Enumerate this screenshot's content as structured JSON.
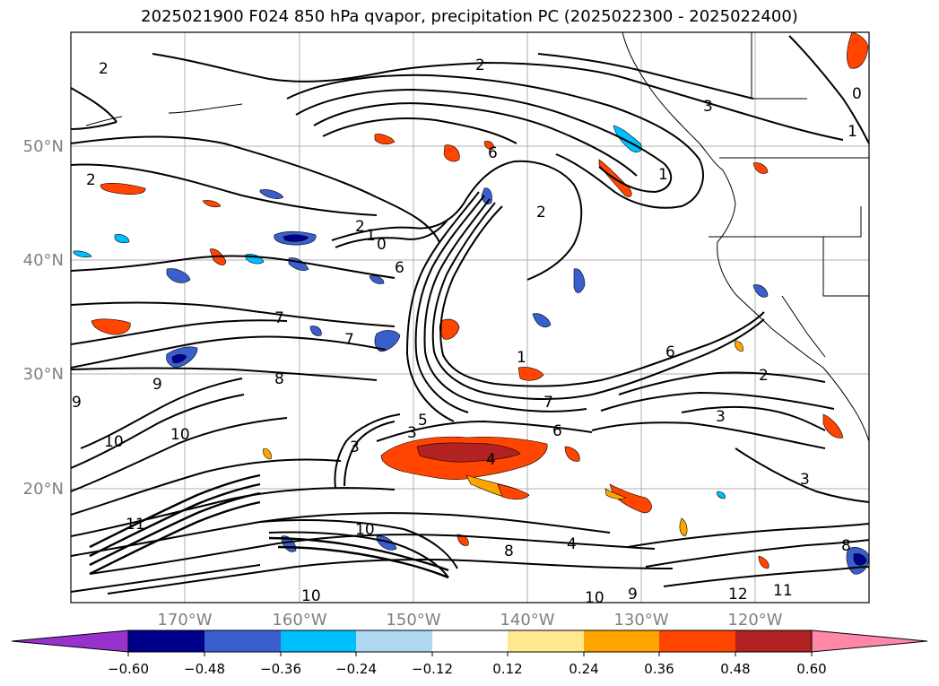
{
  "title": "2025021900 F024 850 hPa qvapor, precipitation PC (2025022300 - 2025022400)",
  "map": {
    "lon_labels": [
      "170°W",
      "160°W",
      "150°W",
      "140°W",
      "130°W",
      "120°W"
    ],
    "lat_labels": [
      "50°N",
      "40°N",
      "30°N",
      "20°N"
    ],
    "axis_label_color": "#808080",
    "contour_labels": [
      {
        "text": "2",
        "ref": "nw-2"
      },
      {
        "text": "2",
        "ref": "north-2"
      },
      {
        "text": "3",
        "ref": "ne-3"
      },
      {
        "text": "1",
        "ref": "ne-1"
      },
      {
        "text": "0",
        "ref": "ne-0"
      },
      {
        "text": "1",
        "ref": "bc-1"
      },
      {
        "text": "2",
        "ref": "left-2"
      },
      {
        "text": "2",
        "ref": "mid-2"
      },
      {
        "text": "1",
        "ref": "mid-1"
      },
      {
        "text": "0",
        "ref": "mid-0"
      },
      {
        "text": "6",
        "ref": "mid-6"
      },
      {
        "text": "2",
        "ref": "center-2"
      },
      {
        "text": "6",
        "ref": "upper-6"
      },
      {
        "text": "7",
        "ref": "west-7"
      },
      {
        "text": "7",
        "ref": "west-7b"
      },
      {
        "text": "8",
        "ref": "west-8"
      },
      {
        "text": "1",
        "ref": "center-1"
      },
      {
        "text": "7",
        "ref": "center-7"
      },
      {
        "text": "5",
        "ref": "center-5"
      },
      {
        "text": "3",
        "ref": "center-3"
      },
      {
        "text": "3",
        "ref": "center-3b"
      },
      {
        "text": "4",
        "ref": "center-4"
      },
      {
        "text": "6",
        "ref": "center-6"
      },
      {
        "text": "6",
        "ref": "east-6"
      },
      {
        "text": "2",
        "ref": "east-2"
      },
      {
        "text": "3",
        "ref": "east-3"
      },
      {
        "text": "3",
        "ref": "southeast-3"
      },
      {
        "text": "9",
        "ref": "sw-9"
      },
      {
        "text": "9",
        "ref": "sw-9b"
      },
      {
        "text": "10",
        "ref": "sw-10"
      },
      {
        "text": "10",
        "ref": "sw-10b"
      },
      {
        "text": "11",
        "ref": "sw-11"
      },
      {
        "text": "10",
        "ref": "south-10"
      },
      {
        "text": "10",
        "ref": "south-10b"
      },
      {
        "text": "4",
        "ref": "south-4"
      },
      {
        "text": "8",
        "ref": "south-8"
      },
      {
        "text": "9",
        "ref": "south-9"
      },
      {
        "text": "10",
        "ref": "se-10"
      },
      {
        "text": "11",
        "ref": "se-11"
      },
      {
        "text": "8",
        "ref": "se-8"
      },
      {
        "text": "12",
        "ref": "se-12"
      }
    ]
  },
  "colorbar": {
    "tick_labels": [
      "−0.60",
      "−0.48",
      "−0.36",
      "−0.24",
      "−0.12",
      "0.12",
      "0.24",
      "0.36",
      "0.48",
      "0.60"
    ],
    "colors": [
      "#9932cc",
      "#8b2fc9",
      "#00008b",
      "#3a5fcd",
      "#00bfff",
      "#add8f0",
      "#ffffff",
      "#ffe98f",
      "#ffa500",
      "#ff4500",
      "#b22222",
      "#ff88aa"
    ],
    "under_color": "#9932cc",
    "over_color": "#ff88aa"
  }
}
